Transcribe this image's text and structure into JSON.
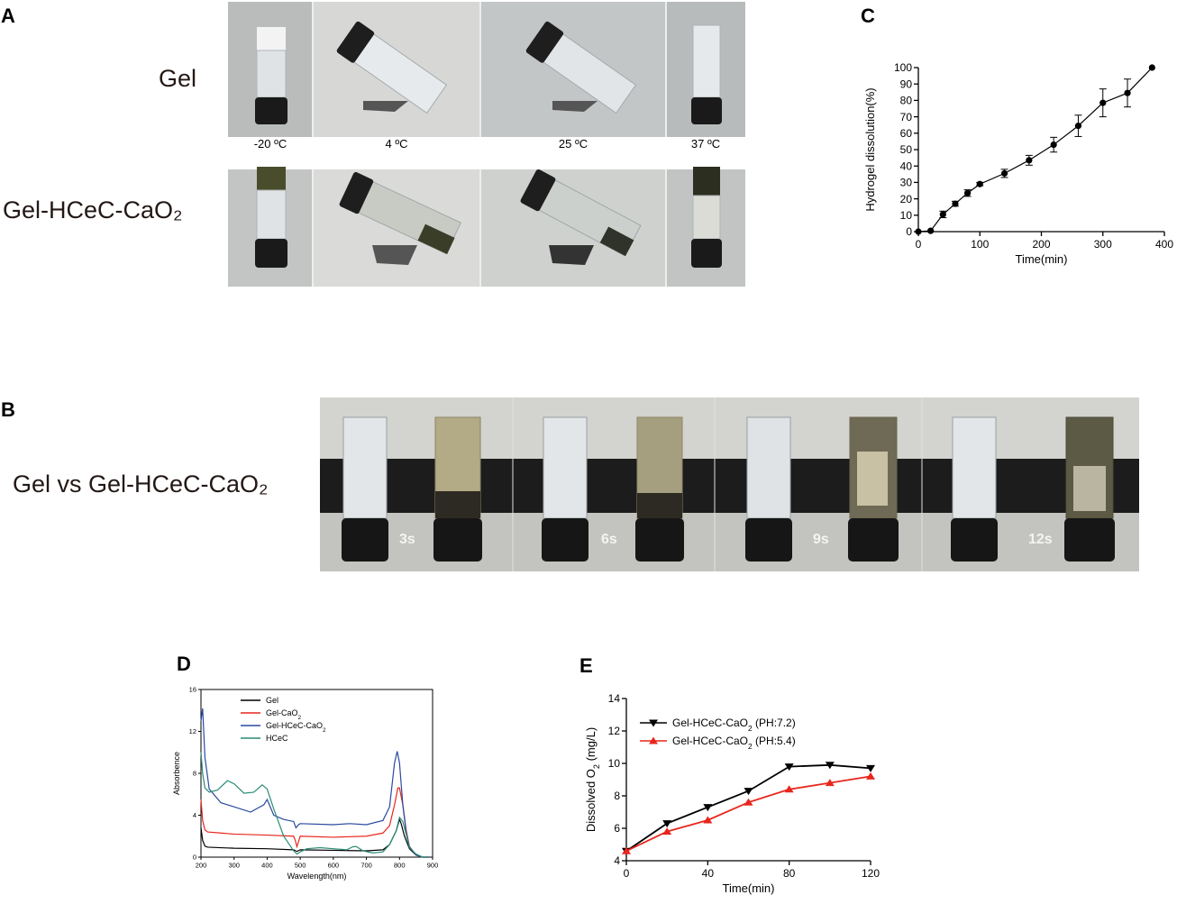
{
  "panels": {
    "A": {
      "letter": "A",
      "row_labels": [
        "Gel",
        "Gel-HCeC-CaO₂"
      ],
      "temperatures": [
        "-20 ºC",
        "4 ºC",
        "25 ºC",
        "37 ºC"
      ]
    },
    "B": {
      "letter": "B",
      "row_label": "Gel vs Gel-HCeC-CaO₂",
      "times": [
        "3s",
        "6s",
        "9s",
        "12s"
      ]
    },
    "C": {
      "letter": "C"
    },
    "D": {
      "letter": "D"
    },
    "E": {
      "letter": "E"
    }
  },
  "chart_data": [
    {
      "id": "C",
      "type": "line",
      "xlabel": "Time(min)",
      "ylabel": "Hydrogel dissolution(%)",
      "xlim": [
        0,
        400
      ],
      "ylim": [
        0,
        100
      ],
      "xticks": [
        0,
        100,
        200,
        300,
        400
      ],
      "yticks": [
        0,
        10,
        20,
        30,
        40,
        50,
        60,
        70,
        80,
        90,
        100
      ],
      "series": [
        {
          "x": [
            0,
            20,
            40,
            60,
            80,
            100,
            140,
            180,
            220,
            260,
            300,
            340,
            380
          ],
          "y": [
            0,
            0.5,
            10.5,
            17,
            23.5,
            29,
            35.5,
            43.5,
            53,
            64.5,
            78.5,
            84.5,
            100
          ],
          "err": [
            0,
            0,
            2,
            1.5,
            2,
            1,
            2.5,
            3,
            4.5,
            6.5,
            8.5,
            8.5,
            0
          ],
          "color": "#000000"
        }
      ]
    },
    {
      "id": "D",
      "type": "line",
      "xlabel": "Wavelength(nm)",
      "ylabel": "Absorbence",
      "xlim": [
        200,
        900
      ],
      "ylim": [
        0,
        16
      ],
      "xticks": [
        200,
        300,
        400,
        500,
        600,
        700,
        800,
        900
      ],
      "yticks": [
        0,
        4,
        8,
        12,
        16
      ],
      "legend_position": "top-left",
      "series": [
        {
          "name": "Gel",
          "color": "#000000",
          "x": [
            200,
            205,
            212,
            220,
            260,
            300,
            400,
            480,
            490,
            500,
            600,
            700,
            750,
            770,
            790,
            800,
            805,
            815,
            830,
            850,
            870,
            890
          ],
          "y": [
            2.8,
            1.6,
            1.05,
            0.95,
            0.9,
            0.85,
            0.8,
            0.7,
            0.55,
            0.7,
            0.65,
            0.6,
            0.7,
            1.2,
            2.5,
            3.6,
            3.2,
            2.0,
            0.8,
            0.2,
            0.0,
            0.0
          ]
        },
        {
          "name": "Gel-CaO₂",
          "color": "#e8261d",
          "x": [
            200,
            205,
            212,
            220,
            260,
            300,
            400,
            480,
            485,
            490,
            500,
            600,
            700,
            750,
            770,
            785,
            795,
            800,
            810,
            820,
            830,
            850,
            870,
            890
          ],
          "y": [
            5.5,
            3.5,
            2.6,
            2.4,
            2.3,
            2.2,
            2.1,
            2.0,
            1.6,
            1.0,
            2.0,
            1.9,
            2.0,
            2.3,
            3.0,
            5.0,
            6.6,
            6.6,
            5.0,
            2.6,
            1.0,
            0.2,
            0.0,
            0.0
          ]
        },
        {
          "name": "Gel-HCeC-CaO₂",
          "color": "#2a4aa0",
          "x": [
            200,
            205,
            212,
            225,
            260,
            300,
            350,
            390,
            400,
            420,
            450,
            480,
            487,
            495,
            500,
            600,
            650,
            700,
            750,
            770,
            785,
            793,
            800,
            810,
            820,
            830,
            850,
            870,
            890
          ],
          "y": [
            13.0,
            14.2,
            9.5,
            6.5,
            5.2,
            4.8,
            4.3,
            5.0,
            5.5,
            4.0,
            3.6,
            3.4,
            2.8,
            3.1,
            3.2,
            3.1,
            3.2,
            3.1,
            3.5,
            4.8,
            9.0,
            10.1,
            9.0,
            5.0,
            2.4,
            1.0,
            0.2,
            0.0,
            0.0
          ]
        },
        {
          "name": "HCeC",
          "color": "#2a8c76",
          "x": [
            200,
            205,
            212,
            225,
            250,
            280,
            300,
            330,
            360,
            385,
            400,
            420,
            450,
            480,
            490,
            500,
            520,
            560,
            600,
            640,
            660,
            670,
            690,
            720,
            750,
            770,
            790,
            800,
            810,
            820,
            830,
            850,
            870,
            890
          ],
          "y": [
            10.0,
            8.0,
            6.6,
            6.2,
            6.4,
            7.3,
            7.0,
            6.1,
            6.2,
            6.9,
            6.5,
            4.6,
            2.0,
            0.6,
            0.3,
            0.5,
            0.8,
            0.9,
            0.8,
            0.7,
            1.0,
            1.0,
            0.6,
            0.4,
            0.5,
            1.2,
            2.5,
            3.8,
            3.4,
            2.2,
            0.9,
            0.3,
            0.0,
            0.0
          ]
        }
      ]
    },
    {
      "id": "E",
      "type": "line",
      "xlabel": "Time(min)",
      "ylabel": "Dissolved O₂ (mg/L)",
      "xlim": [
        0,
        120
      ],
      "ylim": [
        4,
        14
      ],
      "xticks": [
        0,
        40,
        80,
        120
      ],
      "yticks": [
        4,
        6,
        8,
        10,
        12,
        14
      ],
      "legend_position": "top-left",
      "series": [
        {
          "name": "Gel-HCeC-CaO₂ (PH:7.2)",
          "color": "#000000",
          "marker": "triangle-down",
          "x": [
            0,
            20,
            40,
            60,
            80,
            100,
            120
          ],
          "y": [
            4.6,
            6.3,
            7.3,
            8.3,
            9.8,
            9.9,
            9.7
          ]
        },
        {
          "name": "Gel-HCeC-CaO₂ (PH:5.4)",
          "color": "#e8261d",
          "marker": "triangle-up",
          "x": [
            0,
            20,
            40,
            60,
            80,
            100,
            120
          ],
          "y": [
            4.6,
            5.8,
            6.5,
            7.6,
            8.4,
            8.8,
            9.2
          ]
        }
      ]
    }
  ]
}
